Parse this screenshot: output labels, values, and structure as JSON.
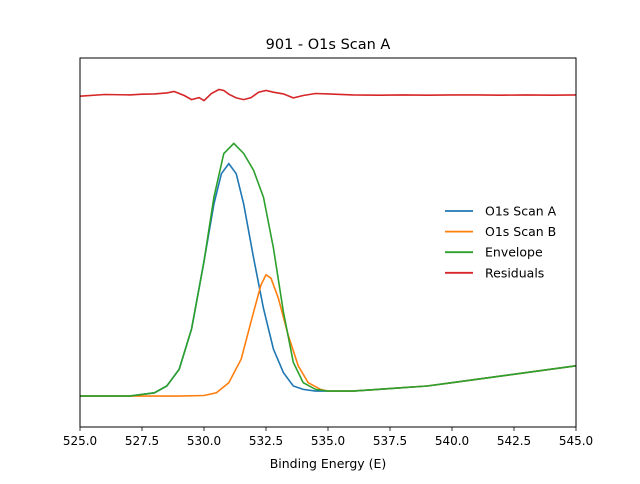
{
  "chart_data": {
    "type": "line",
    "title": "901 - O1s Scan A",
    "xlabel": "Binding Energy (E)",
    "ylabel": "",
    "xlim": [
      525.0,
      545.0
    ],
    "ylim": [
      0,
      1
    ],
    "y_ticks_visible": false,
    "grid": false,
    "legend_position": "center-right",
    "x_ticks": [
      "525.0",
      "527.5",
      "530.0",
      "532.5",
      "535.0",
      "537.5",
      "540.0",
      "542.5",
      "545.0"
    ],
    "x_tick_values": [
      525.0,
      527.5,
      530.0,
      532.5,
      535.0,
      537.5,
      540.0,
      542.5,
      545.0
    ],
    "series": [
      {
        "name": "O1s Scan A",
        "color": "#1f77b4",
        "x": [
          525.0,
          527.0,
          528.0,
          528.5,
          529.0,
          529.5,
          530.0,
          530.4,
          530.7,
          531.0,
          531.3,
          531.6,
          532.0,
          532.4,
          532.8,
          533.2,
          533.6,
          534.0,
          534.5,
          535.0,
          536.0,
          537.0,
          538.0,
          539.0,
          540.0,
          541.0,
          542.0,
          543.0,
          544.0,
          545.0
        ],
        "y": [
          0.05,
          0.05,
          0.06,
          0.08,
          0.13,
          0.25,
          0.45,
          0.62,
          0.71,
          0.74,
          0.71,
          0.62,
          0.46,
          0.31,
          0.19,
          0.12,
          0.08,
          0.07,
          0.065,
          0.065,
          0.065,
          0.07,
          0.075,
          0.08,
          0.09,
          0.1,
          0.11,
          0.12,
          0.13,
          0.14
        ]
      },
      {
        "name": "O1s Scan B",
        "color": "#ff7f0e",
        "x": [
          525.0,
          529.0,
          530.0,
          530.5,
          531.0,
          531.5,
          532.0,
          532.3,
          532.5,
          532.7,
          533.0,
          533.4,
          533.8,
          534.2,
          534.7,
          535.0,
          536.0,
          537.0,
          538.0,
          539.0,
          540.0,
          541.0,
          542.0,
          543.0,
          544.0,
          545.0
        ],
        "y": [
          0.05,
          0.05,
          0.052,
          0.06,
          0.09,
          0.16,
          0.3,
          0.38,
          0.41,
          0.4,
          0.34,
          0.23,
          0.14,
          0.09,
          0.07,
          0.065,
          0.065,
          0.07,
          0.075,
          0.08,
          0.09,
          0.1,
          0.11,
          0.12,
          0.13,
          0.14
        ]
      },
      {
        "name": "Envelope",
        "color": "#2ca02c",
        "x": [
          525.0,
          527.0,
          528.0,
          528.5,
          529.0,
          529.5,
          530.0,
          530.4,
          530.8,
          531.2,
          531.6,
          532.0,
          532.4,
          532.8,
          533.2,
          533.6,
          534.0,
          534.5,
          535.0,
          536.0,
          537.0,
          538.0,
          539.0,
          540.0,
          541.0,
          542.0,
          543.0,
          544.0,
          545.0
        ],
        "y": [
          0.05,
          0.05,
          0.06,
          0.08,
          0.13,
          0.25,
          0.45,
          0.64,
          0.77,
          0.8,
          0.77,
          0.72,
          0.64,
          0.49,
          0.3,
          0.15,
          0.09,
          0.07,
          0.065,
          0.065,
          0.07,
          0.075,
          0.08,
          0.09,
          0.1,
          0.11,
          0.12,
          0.13,
          0.14
        ]
      },
      {
        "name": "Residuals",
        "color": "#d62728",
        "x": [
          525.0,
          526.0,
          527.0,
          527.5,
          528.0,
          528.5,
          528.8,
          529.2,
          529.5,
          529.8,
          530.0,
          530.3,
          530.6,
          530.8,
          531.0,
          531.3,
          531.6,
          531.9,
          532.2,
          532.5,
          532.8,
          533.2,
          533.6,
          534.0,
          534.5,
          535.0,
          536.0,
          537.0,
          538.0,
          539.0,
          540.0,
          541.0,
          542.0,
          543.0,
          544.0,
          545.0
        ],
        "y": [
          0.94,
          0.945,
          0.944,
          0.946,
          0.947,
          0.95,
          0.954,
          0.942,
          0.93,
          0.936,
          0.927,
          0.948,
          0.96,
          0.957,
          0.946,
          0.935,
          0.93,
          0.936,
          0.952,
          0.957,
          0.952,
          0.947,
          0.935,
          0.942,
          0.948,
          0.947,
          0.944,
          0.943,
          0.944,
          0.943,
          0.944,
          0.944,
          0.943,
          0.944,
          0.943,
          0.944
        ]
      }
    ]
  }
}
